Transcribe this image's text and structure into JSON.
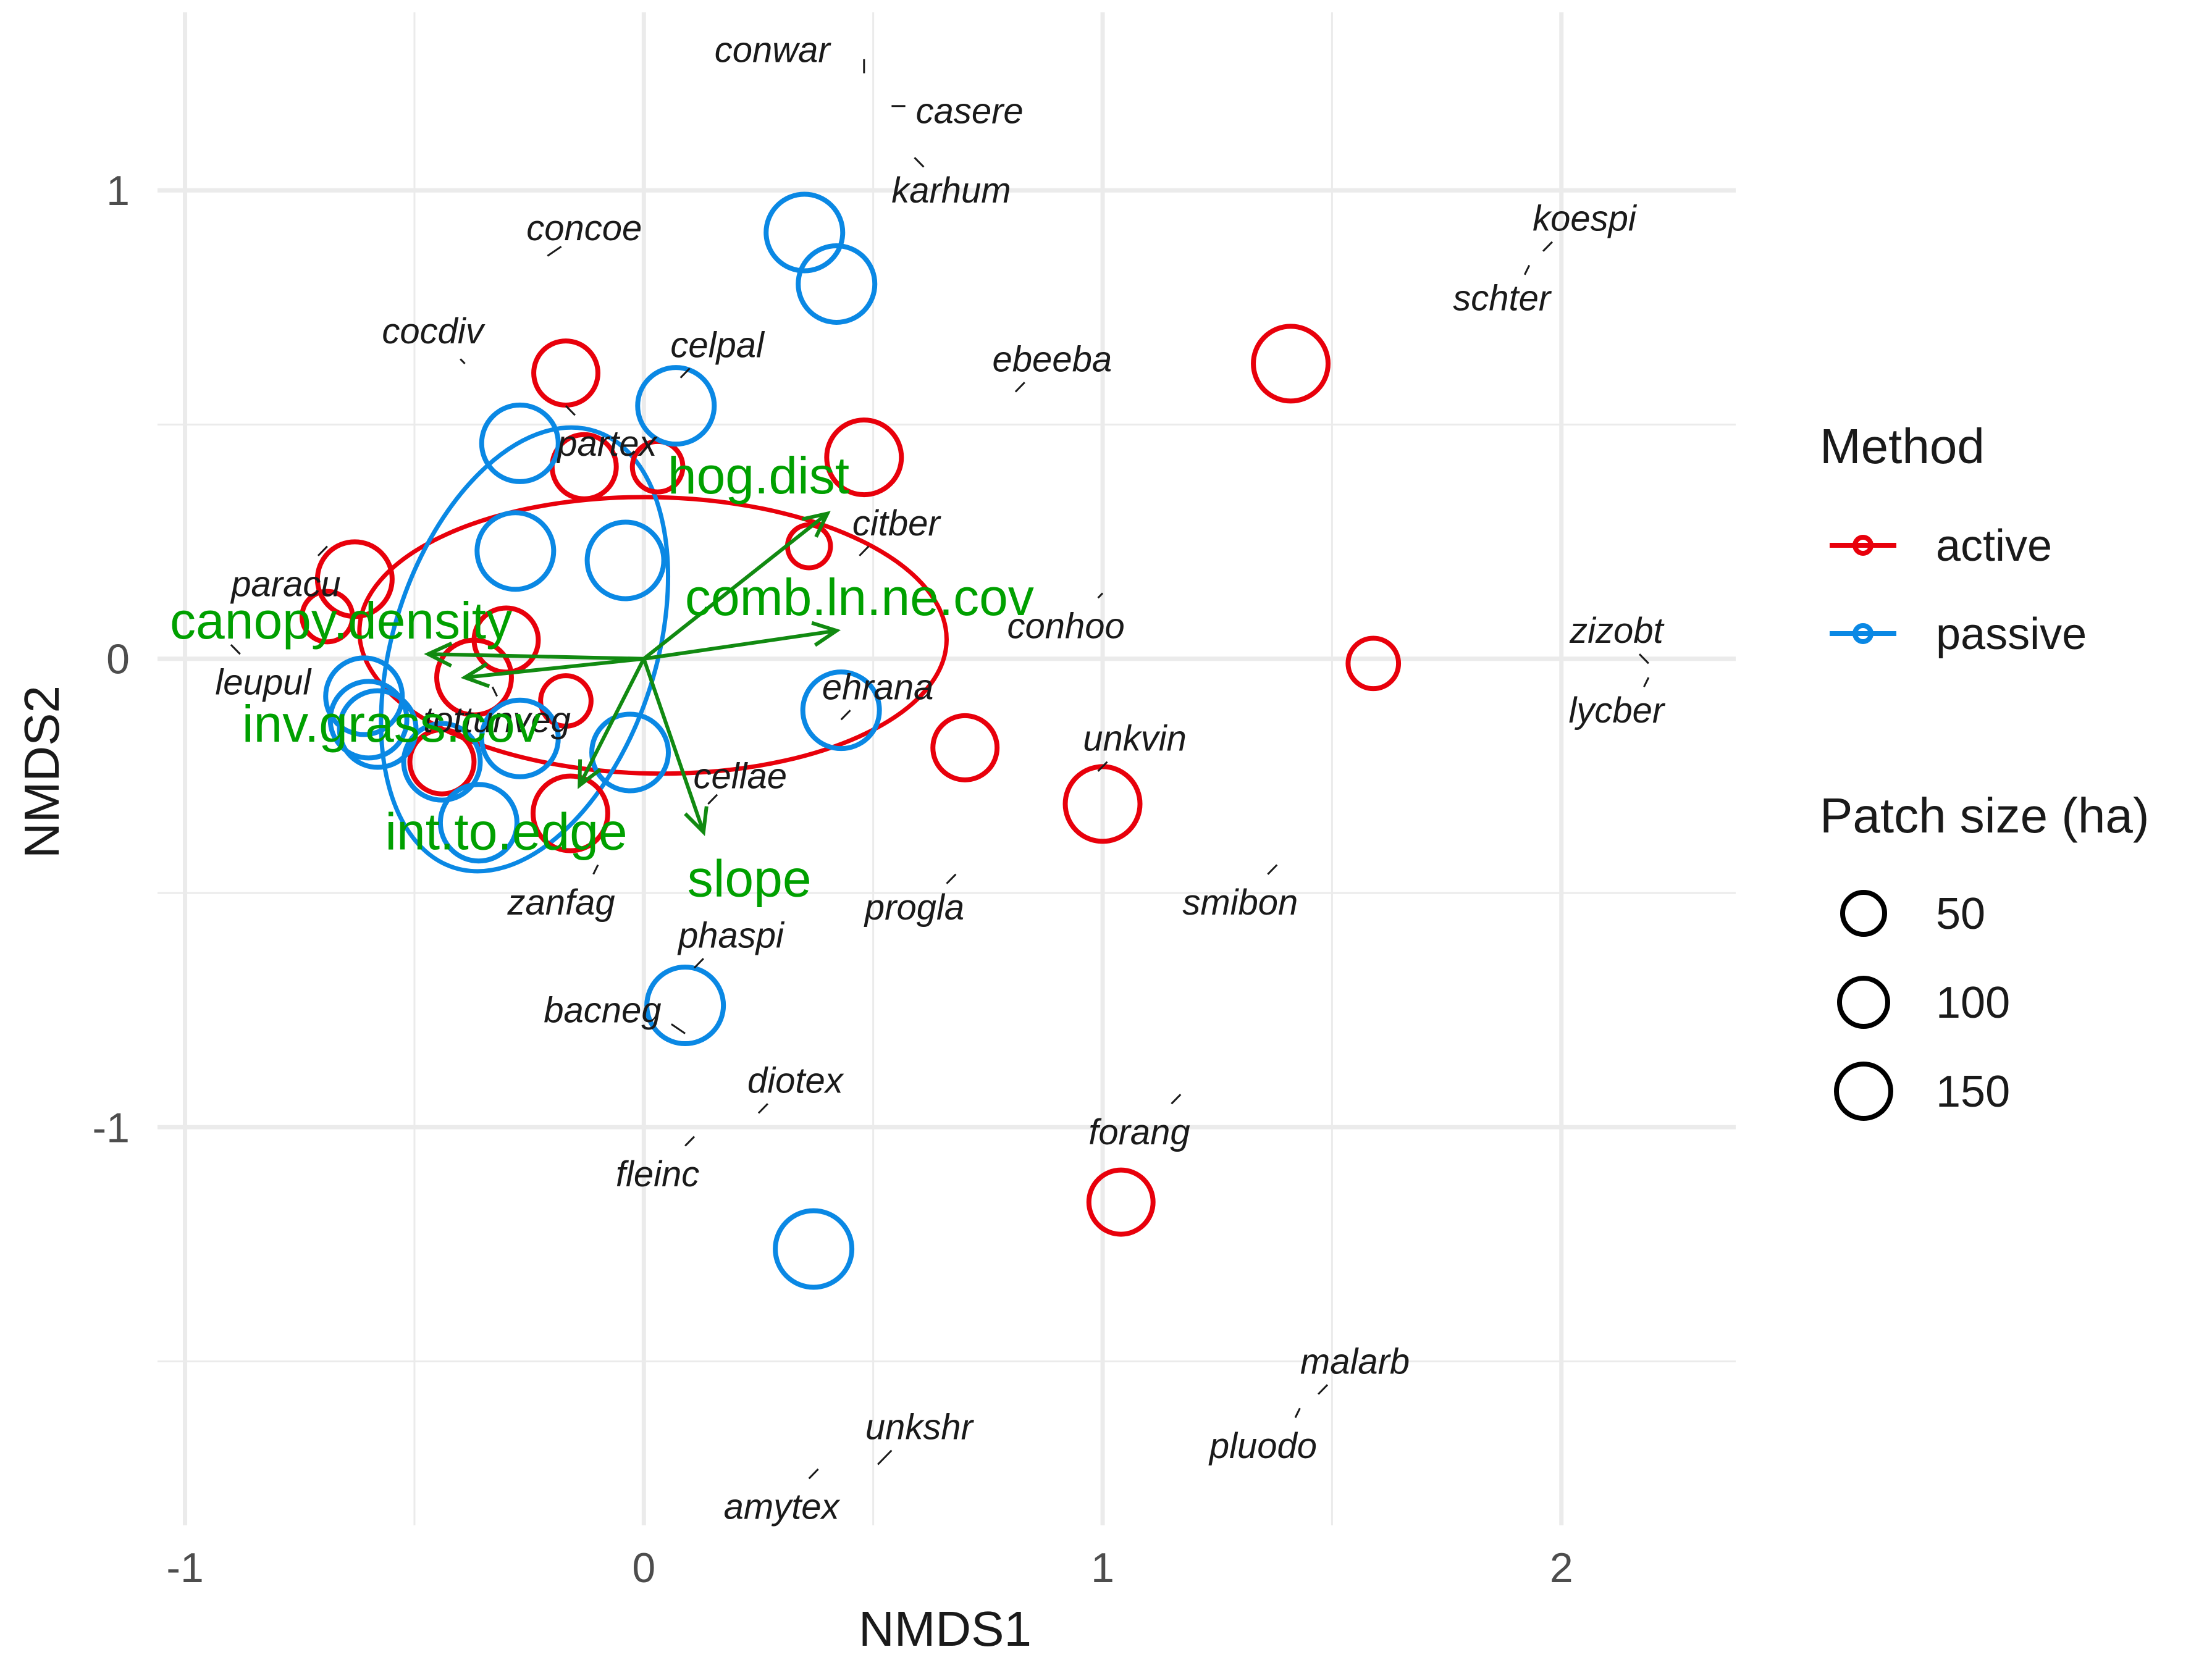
{
  "chart_data": {
    "type": "scatter",
    "xlabel": "NMDS1",
    "ylabel": "NMDS2",
    "xlim": [
      -1.06,
      2.38
    ],
    "ylim": [
      -1.85,
      1.38
    ],
    "x_ticks": [
      -1,
      0,
      1,
      2
    ],
    "y_ticks": [
      -1,
      0,
      1
    ],
    "grid": true,
    "legend_method": {
      "title": "Method",
      "items": [
        {
          "label": "active",
          "color": "#e8000b"
        },
        {
          "label": "passive",
          "color": "#0a88e4"
        }
      ]
    },
    "legend_size": {
      "title": "Patch size (ha)",
      "items": [
        {
          "label": "50",
          "value": 50
        },
        {
          "label": "100",
          "value": 100
        },
        {
          "label": "150",
          "value": 150
        }
      ]
    },
    "sites": [
      {
        "method": "active",
        "x": -0.17,
        "y": 0.61,
        "size": 10
      },
      {
        "method": "active",
        "x": -0.13,
        "y": 0.41,
        "size": 10
      },
      {
        "method": "active",
        "x": 0.03,
        "y": 0.41,
        "size": 5
      },
      {
        "method": "active",
        "x": 0.48,
        "y": 0.43,
        "size": 15
      },
      {
        "method": "active",
        "x": -0.63,
        "y": 0.17,
        "size": 15
      },
      {
        "method": "active",
        "x": -0.69,
        "y": 0.09,
        "size": 5
      },
      {
        "method": "active",
        "x": -0.3,
        "y": 0.04,
        "size": 10
      },
      {
        "method": "active",
        "x": -0.37,
        "y": -0.04,
        "size": 15
      },
      {
        "method": "active",
        "x": -0.17,
        "y": -0.09,
        "size": 5
      },
      {
        "method": "active",
        "x": -0.44,
        "y": -0.22,
        "size": 10
      },
      {
        "method": "active",
        "x": -0.16,
        "y": -0.33,
        "size": 15
      },
      {
        "method": "active",
        "x": 0.36,
        "y": 0.24,
        "size": 3
      },
      {
        "method": "active",
        "x": 0.7,
        "y": -0.19,
        "size": 10
      },
      {
        "method": "active",
        "x": 1.0,
        "y": -0.31,
        "size": 15
      },
      {
        "method": "active",
        "x": 1.41,
        "y": 0.63,
        "size": 15
      },
      {
        "method": "active",
        "x": 1.59,
        "y": -0.01,
        "size": 5
      },
      {
        "method": "active",
        "x": 1.04,
        "y": -1.16,
        "size": 10
      },
      {
        "method": "passive",
        "x": 0.35,
        "y": 0.91,
        "size": 60
      },
      {
        "method": "passive",
        "x": 0.42,
        "y": 0.8,
        "size": 50
      },
      {
        "method": "passive",
        "x": 0.07,
        "y": 0.54,
        "size": 30
      },
      {
        "method": "passive",
        "x": -0.27,
        "y": 0.46,
        "size": 60
      },
      {
        "method": "passive",
        "x": -0.28,
        "y": 0.23,
        "size": 30
      },
      {
        "method": "passive",
        "x": -0.04,
        "y": 0.21,
        "size": 110
      },
      {
        "method": "passive",
        "x": -0.61,
        "y": -0.08,
        "size": 20
      },
      {
        "method": "passive",
        "x": -0.6,
        "y": -0.13,
        "size": 160
      },
      {
        "method": "passive",
        "x": -0.58,
        "y": -0.15,
        "size": 100
      },
      {
        "method": "passive",
        "x": -0.44,
        "y": -0.22,
        "size": 90
      },
      {
        "method": "passive",
        "x": -0.27,
        "y": -0.17,
        "size": 40
      },
      {
        "method": "passive",
        "x": -0.03,
        "y": -0.2,
        "size": 40
      },
      {
        "method": "passive",
        "x": -0.36,
        "y": -0.35,
        "size": 60
      },
      {
        "method": "passive",
        "x": 0.43,
        "y": -0.11,
        "size": 30
      },
      {
        "method": "passive",
        "x": 0.09,
        "y": -0.74,
        "size": 60
      },
      {
        "method": "passive",
        "x": 0.37,
        "y": -1.26,
        "size": 60
      }
    ],
    "ellipses": [
      {
        "method": "active",
        "cx": 0.02,
        "cy": 0.05,
        "rx": 0.64,
        "ry": 0.295,
        "angle_deg": -1
      },
      {
        "method": "passive",
        "cx": -0.26,
        "cy": 0.02,
        "rx": 0.5,
        "ry": 0.28,
        "angle_deg": 72
      }
    ],
    "species": [
      {
        "label": "conwar",
        "x": 0.28,
        "y": 1.3,
        "lx": 0.48,
        "ly": 1.28,
        "px": 0.48,
        "py": 1.25
      },
      {
        "label": "casere",
        "x": 0.71,
        "y": 1.17,
        "lx": 0.57,
        "ly": 1.18,
        "px": 0.54,
        "py": 1.18
      },
      {
        "label": "karhum",
        "x": 0.67,
        "y": 1.0,
        "lx": 0.61,
        "ly": 1.05,
        "px": 0.59,
        "py": 1.07
      },
      {
        "label": "concoe",
        "x": -0.13,
        "y": 0.92,
        "lx": -0.18,
        "ly": 0.88,
        "px": -0.21,
        "py": 0.86
      },
      {
        "label": "cocdiv",
        "x": -0.46,
        "y": 0.7,
        "lx": -0.4,
        "ly": 0.64,
        "px": -0.39,
        "py": 0.63
      },
      {
        "label": "celpal",
        "x": 0.16,
        "y": 0.67,
        "lx": 0.1,
        "ly": 0.62,
        "px": 0.08,
        "py": 0.6
      },
      {
        "label": "ebeeba",
        "x": 0.89,
        "y": 0.64,
        "lx": 0.83,
        "ly": 0.59,
        "px": 0.81,
        "py": 0.57
      },
      {
        "label": "koespi",
        "x": 2.05,
        "y": 0.94,
        "lx": 1.98,
        "ly": 0.89,
        "px": 1.96,
        "py": 0.87
      },
      {
        "label": "schter",
        "x": 1.87,
        "y": 0.77,
        "lx": 1.92,
        "ly": 0.82,
        "px": 1.93,
        "py": 0.84
      },
      {
        "label": "partex",
        "x": -0.08,
        "y": 0.46,
        "lx": -0.15,
        "ly": 0.52,
        "px": -0.17,
        "py": 0.54
      },
      {
        "label": "citber",
        "x": 0.55,
        "y": 0.29,
        "lx": 0.49,
        "ly": 0.24,
        "px": 0.47,
        "py": 0.22
      },
      {
        "label": "paracu",
        "x": -0.78,
        "y": 0.16,
        "lx": -0.71,
        "ly": 0.22,
        "px": -0.69,
        "py": 0.24
      },
      {
        "label": "conhoo",
        "x": 0.92,
        "y": 0.07,
        "lx": 0.99,
        "ly": 0.13,
        "px": 1.0,
        "py": 0.14
      },
      {
        "label": "zizobt",
        "x": 2.12,
        "y": 0.06,
        "lx": 2.17,
        "ly": 0.01,
        "px": 2.19,
        "py": -0.01
      },
      {
        "label": "leupul",
        "x": -0.83,
        "y": -0.05,
        "lx": -0.88,
        "ly": 0.01,
        "px": -0.9,
        "py": 0.03
      },
      {
        "label": "lycber",
        "x": 2.12,
        "y": -0.11,
        "lx": 2.18,
        "ly": -0.06,
        "px": 2.19,
        "py": -0.04
      },
      {
        "label": "ehrana",
        "x": 0.51,
        "y": -0.06,
        "lx": 0.45,
        "ly": -0.11,
        "px": 0.43,
        "py": -0.13
      },
      {
        "label": "tottunveg",
        "x": -0.32,
        "y": -0.13,
        "lx": -0.32,
        "ly": -0.08,
        "px": -0.33,
        "py": -0.06
      },
      {
        "label": "unkvin",
        "x": 1.07,
        "y": -0.17,
        "lx": 1.01,
        "ly": -0.22,
        "px": 0.99,
        "py": -0.24
      },
      {
        "label": "cellae",
        "x": 0.21,
        "y": -0.25,
        "lx": 0.16,
        "ly": -0.29,
        "px": 0.14,
        "py": -0.31
      },
      {
        "label": "smibon",
        "x": 1.3,
        "y": -0.52,
        "lx": 1.36,
        "ly": -0.46,
        "px": 1.38,
        "py": -0.44
      },
      {
        "label": "zanfag",
        "x": -0.18,
        "y": -0.52,
        "lx": -0.11,
        "ly": -0.46,
        "px": -0.1,
        "py": -0.44
      },
      {
        "label": "progla",
        "x": 0.59,
        "y": -0.53,
        "lx": 0.66,
        "ly": -0.48,
        "px": 0.68,
        "py": -0.46
      },
      {
        "label": "phaspi",
        "x": 0.19,
        "y": -0.59,
        "lx": 0.13,
        "ly": -0.64,
        "px": 0.11,
        "py": -0.66
      },
      {
        "label": "bacneg",
        "x": -0.09,
        "y": -0.75,
        "lx": 0.06,
        "ly": -0.78,
        "px": 0.09,
        "py": -0.8
      },
      {
        "label": "diotex",
        "x": 0.33,
        "y": -0.9,
        "lx": 0.27,
        "ly": -0.95,
        "px": 0.25,
        "py": -0.97
      },
      {
        "label": "forang",
        "x": 1.08,
        "y": -1.01,
        "lx": 1.15,
        "ly": -0.95,
        "px": 1.17,
        "py": -0.93
      },
      {
        "label": "fleinc",
        "x": 0.03,
        "y": -1.1,
        "lx": 0.09,
        "ly": -1.04,
        "px": 0.11,
        "py": -1.02
      },
      {
        "label": "malarb",
        "x": 1.55,
        "y": -1.5,
        "lx": 1.49,
        "ly": -1.55,
        "px": 1.47,
        "py": -1.57
      },
      {
        "label": "pluodo",
        "x": 1.35,
        "y": -1.68,
        "lx": 1.42,
        "ly": -1.62,
        "px": 1.43,
        "py": -1.6
      },
      {
        "label": "unkshr",
        "x": 0.6,
        "y": -1.64,
        "lx": 0.54,
        "ly": -1.69,
        "px": 0.51,
        "py": -1.72
      },
      {
        "label": "amytex",
        "x": 0.3,
        "y": -1.81,
        "lx": 0.36,
        "ly": -1.75,
        "px": 0.38,
        "py": -1.73
      }
    ],
    "env_vectors": [
      {
        "label": "hog.dist",
        "x": 0.4,
        "y": 0.31,
        "tx": 0.25,
        "ty": 0.39
      },
      {
        "label": "comb.ln.ne.cov",
        "x": 0.42,
        "y": 0.06,
        "tx": 0.47,
        "ty": 0.13
      },
      {
        "label": "canopy.density",
        "x": -0.47,
        "y": 0.01,
        "tx": -0.66,
        "ty": 0.08
      },
      {
        "label": "inv.grass.cov",
        "x": -0.39,
        "y": -0.04,
        "tx": -0.55,
        "ty": -0.14
      },
      {
        "label": "int.to.edge",
        "x": -0.14,
        "y": -0.27,
        "tx": -0.3,
        "ty": -0.37
      },
      {
        "label": "slope",
        "x": 0.13,
        "y": -0.37,
        "tx": 0.23,
        "ty": -0.47
      }
    ]
  }
}
